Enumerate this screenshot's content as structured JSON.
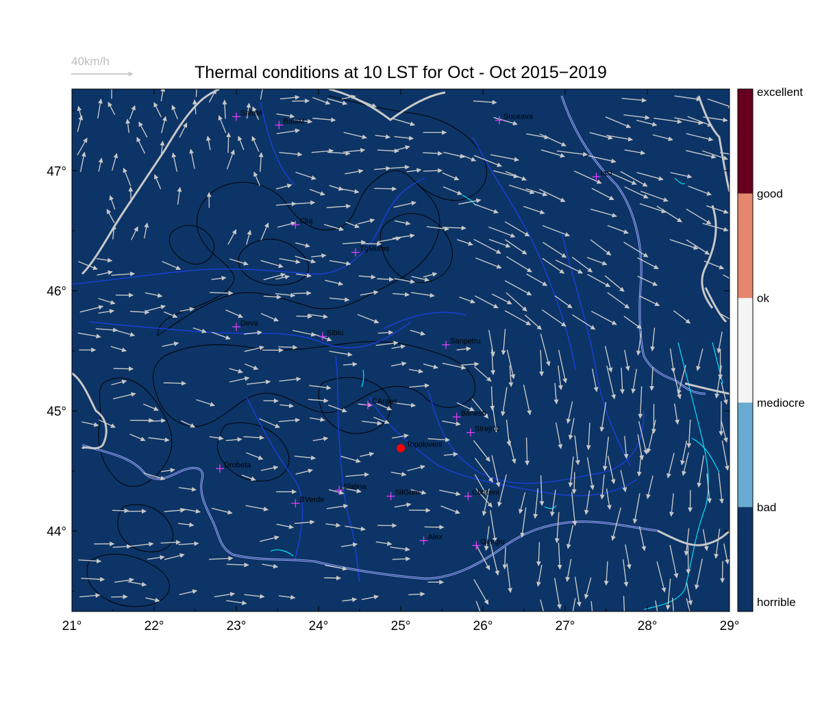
{
  "title": "Thermal conditions at 10 LST for Oct - Oct  2015−2019",
  "wind_scale": {
    "label": "40km/h",
    "color": "#bdbdbd"
  },
  "map": {
    "lon_range": [
      21,
      29
    ],
    "lat_range": [
      43.33,
      47.68
    ],
    "background_color": "#0c3466",
    "x_ticks": [
      "21°",
      "22°",
      "23°",
      "24°",
      "25°",
      "26°",
      "27°",
      "28°",
      "29°"
    ],
    "x_tick_values": [
      21,
      22,
      23,
      24,
      25,
      26,
      27,
      28,
      29
    ],
    "y_ticks": [
      "44°",
      "45°",
      "46°",
      "47°"
    ],
    "y_tick_values": [
      44,
      45,
      46,
      47
    ]
  },
  "cities": [
    {
      "name": "SatuM",
      "lon": 23.0,
      "lat": 47.45
    },
    {
      "name": "BaiaM",
      "lon": 23.52,
      "lat": 47.38
    },
    {
      "name": "Suceava",
      "lon": 26.2,
      "lat": 47.42
    },
    {
      "name": "Iasi",
      "lon": 27.38,
      "lat": 46.95
    },
    {
      "name": "Cluj",
      "lon": 23.72,
      "lat": 46.55
    },
    {
      "name": "TgMures",
      "lon": 24.45,
      "lat": 46.32
    },
    {
      "name": "Deva",
      "lon": 23.0,
      "lat": 45.7
    },
    {
      "name": "Sibiu",
      "lon": 24.05,
      "lat": 45.62
    },
    {
      "name": "Sanpetru",
      "lon": 25.55,
      "lat": 45.55
    },
    {
      "name": "CArges",
      "lon": 24.6,
      "lat": 45.05
    },
    {
      "name": "Banesti",
      "lon": 25.68,
      "lat": 44.95
    },
    {
      "name": "Strejnic",
      "lon": 25.85,
      "lat": 44.82
    },
    {
      "name": "Drobeta",
      "lon": 22.8,
      "lat": 44.52
    },
    {
      "name": "Slatina",
      "lon": 24.25,
      "lat": 44.34
    },
    {
      "name": "SilGum",
      "lon": 24.88,
      "lat": 44.29
    },
    {
      "name": "Clinceni",
      "lon": 25.82,
      "lat": 44.29
    },
    {
      "name": "BVerde",
      "lon": 23.72,
      "lat": 44.23
    },
    {
      "name": "Alex",
      "lon": 25.28,
      "lat": 43.92
    },
    {
      "name": "Giurgiu",
      "lon": 25.92,
      "lat": 43.88
    }
  ],
  "site": {
    "name": "Topoloveni",
    "lon": 25.0,
    "lat": 44.69,
    "color": "#ff0000"
  },
  "legend": {
    "levels": [
      "horrible",
      "bad",
      "mediocre",
      "ok",
      "good",
      "excellent"
    ],
    "colors": [
      "#0c3466",
      "#6aabd2",
      "#f5f5f5",
      "#f7f7f7",
      "#e4876c",
      "#67001f"
    ],
    "bands": [
      {
        "from": 0.0,
        "to": 0.2,
        "color": "#0c3466"
      },
      {
        "from": 0.2,
        "to": 0.4,
        "color": "#6aabd2"
      },
      {
        "from": 0.4,
        "to": 0.6,
        "color": "#f5f5f5"
      },
      {
        "from": 0.6,
        "to": 0.8,
        "color": "#e4876c"
      },
      {
        "from": 0.8,
        "to": 1.0,
        "color": "#67001f"
      }
    ]
  },
  "colors": {
    "wind_vectors": "#c8c8c8",
    "borders": "#c8c8c8",
    "rivers": "#1a3fd6",
    "lakes": "#00e5ff",
    "contours": "#000000",
    "city_marker": "#e040fb"
  },
  "wind_field": {
    "note_units": "vectors shown as arrows; predominant flow west-to-east in north/central, turning north-to-south in east, variable in south"
  }
}
